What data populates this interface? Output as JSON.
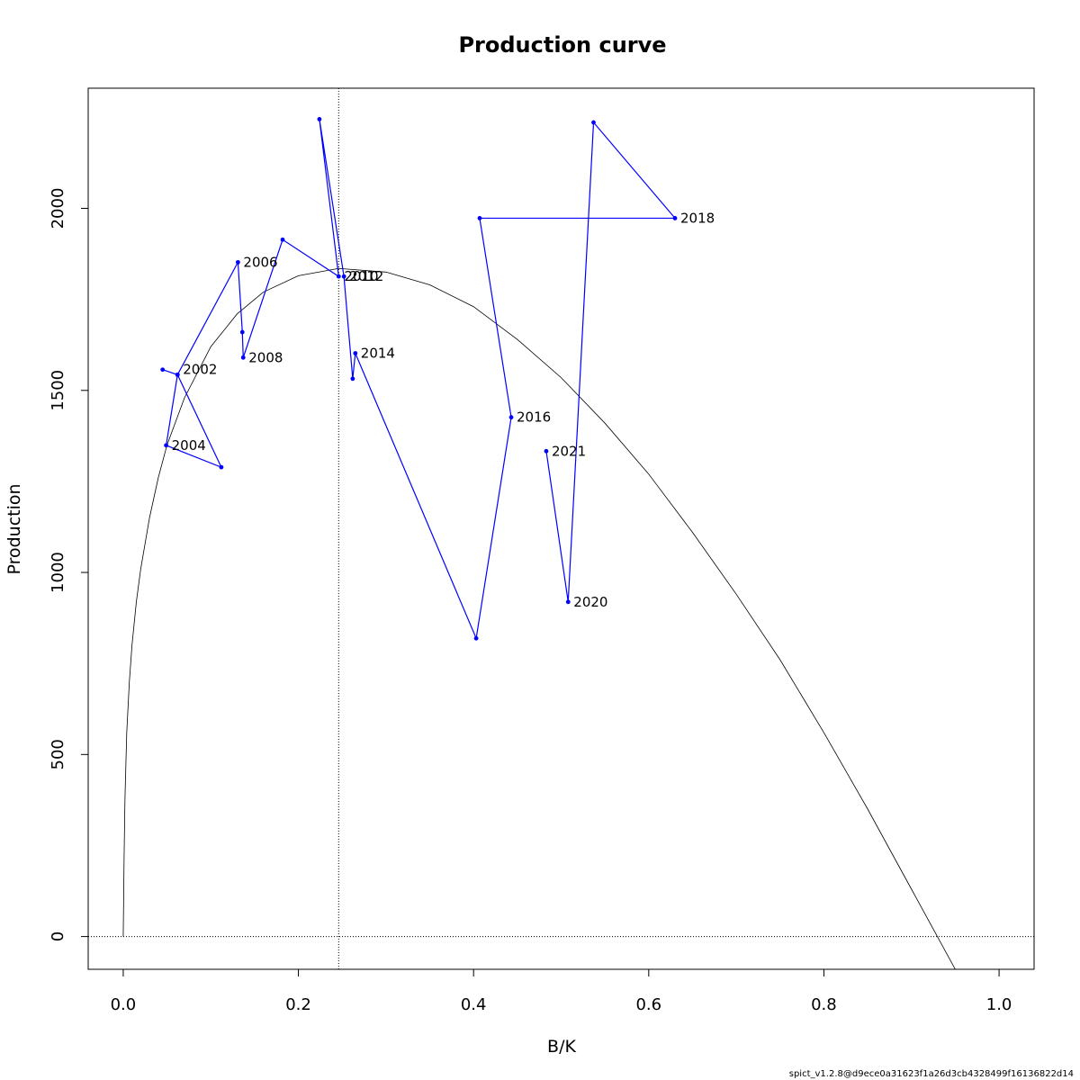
{
  "chart_data": {
    "type": "line",
    "title": "Production curve",
    "xlabel": "B/K",
    "ylabel": "Production",
    "xlim": [
      -0.04,
      1.04
    ],
    "ylim": [
      -90,
      2330
    ],
    "x_ticks": [
      0.0,
      0.2,
      0.4,
      0.6,
      0.8,
      1.0
    ],
    "x_tick_labels": [
      "0.0",
      "0.2",
      "0.4",
      "0.6",
      "0.8",
      "1.0"
    ],
    "y_ticks": [
      0,
      500,
      1000,
      1500,
      2000
    ],
    "y_tick_labels": [
      "0",
      "500",
      "1000",
      "1500",
      "2000"
    ],
    "grid": false,
    "reference_lines": {
      "vertical_x": 0.246,
      "horizontal_y": 0
    },
    "series": [
      {
        "kind": "curve",
        "color": "#000000",
        "x": [
          0,
          0.001,
          0.002,
          0.004,
          0.007,
          0.01,
          0.015,
          0.02,
          0.03,
          0.04,
          0.05,
          0.07,
          0.1,
          0.13,
          0.16,
          0.2,
          0.246,
          0.3,
          0.35,
          0.4,
          0.45,
          0.5,
          0.55,
          0.6,
          0.65,
          0.7,
          0.75,
          0.8,
          0.85,
          0.9,
          0.95,
          1.0
        ],
        "y": [
          0,
          220,
          380,
          560,
          700,
          800,
          920,
          1010,
          1150,
          1260,
          1350,
          1480,
          1620,
          1710,
          1770,
          1815,
          1835,
          1825,
          1790,
          1730,
          1640,
          1535,
          1410,
          1270,
          1110,
          940,
          760,
          560,
          350,
          130,
          -90,
          -330
        ]
      },
      {
        "kind": "trajectory",
        "color": "#0000ff",
        "x": [
          0.045,
          0.062,
          0.112,
          0.049,
          0.062,
          0.131,
          0.136,
          0.137,
          0.182,
          0.246,
          0.224,
          0.252,
          0.262,
          0.265,
          0.403,
          0.443,
          0.407,
          0.63,
          0.537,
          0.508,
          0.483
        ],
        "y": [
          1557,
          1543,
          1289,
          1349,
          1543,
          1852,
          1660,
          1590,
          1914,
          1813,
          2245,
          1813,
          1532,
          1602,
          819,
          1426,
          1973,
          1973,
          2236,
          919,
          1333
        ],
        "years": [
          "2002",
          "",
          "",
          "2004",
          "",
          "2006",
          "",
          "2008",
          "",
          "2010",
          "",
          "2012",
          "",
          "2014",
          "",
          "2016",
          "",
          "2018",
          "",
          "2020",
          "2021"
        ]
      }
    ],
    "year_labels": [
      {
        "text": "2002",
        "x": 0.062,
        "y": 1557
      },
      {
        "text": "2004",
        "x": 0.049,
        "y": 1349
      },
      {
        "text": "2006",
        "x": 0.131,
        "y": 1852
      },
      {
        "text": "2008",
        "x": 0.137,
        "y": 1590
      },
      {
        "text": "2010",
        "x": 0.246,
        "y": 1813
      },
      {
        "text": "2012",
        "x": 0.252,
        "y": 1813
      },
      {
        "text": "2014",
        "x": 0.265,
        "y": 1602
      },
      {
        "text": "2016",
        "x": 0.443,
        "y": 1426
      },
      {
        "text": "2018",
        "x": 0.63,
        "y": 1973
      },
      {
        "text": "2020",
        "x": 0.508,
        "y": 919
      },
      {
        "text": "2021",
        "x": 0.483,
        "y": 1333
      }
    ]
  },
  "footer": "spict_v1.2.8@d9ece0a31623f1a26d3cb4328499f16136822d14"
}
